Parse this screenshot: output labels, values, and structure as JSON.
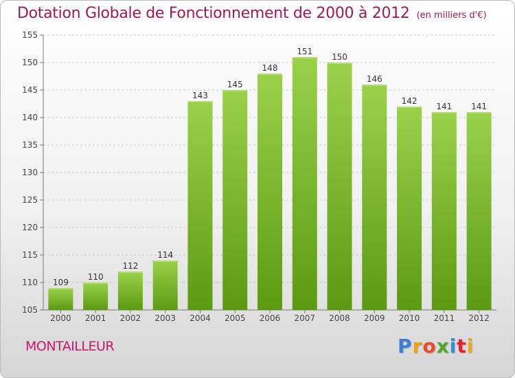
{
  "header": {
    "title": "Dotation Globale de Fonctionnement de 2000 à 2012",
    "unit": "(en milliers d'€)"
  },
  "footer": {
    "commune": "MONTAILLEUR",
    "brand": "Proxiti",
    "brand_letter_colors": [
      "#3a7fd5",
      "#f0a010",
      "#ec4a2a",
      "#56a82b",
      "#2f8fd8",
      "#e7202e",
      "#f5a517"
    ]
  },
  "chart_data": {
    "type": "bar",
    "title": "Dotation Globale de Fonctionnement de 2000 à 2012",
    "subtitle": "(en milliers d'€)",
    "categories": [
      "2000",
      "2001",
      "2002",
      "2003",
      "2004",
      "2005",
      "2006",
      "2007",
      "2008",
      "2009",
      "2010",
      "2011",
      "2012"
    ],
    "values": [
      109,
      110,
      112,
      114,
      143,
      145,
      148,
      151,
      150,
      146,
      142,
      141,
      141
    ],
    "ylim": [
      105,
      155
    ],
    "yticks": [
      105,
      110,
      115,
      120,
      125,
      130,
      135,
      140,
      145,
      150,
      155
    ],
    "grid": true,
    "bar_color_top": "#9ad14b",
    "bar_color_bottom": "#5c9a12"
  }
}
